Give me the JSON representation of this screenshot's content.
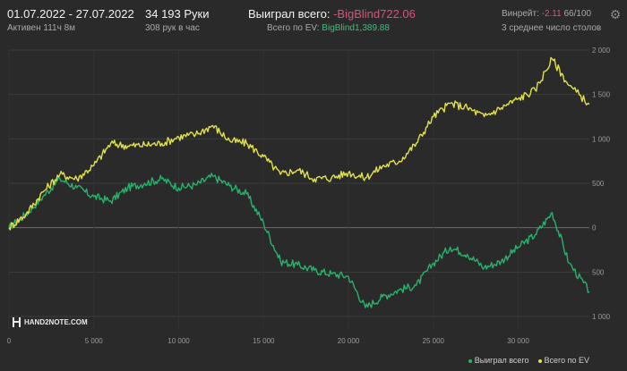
{
  "header": {
    "date_range": "01.07.2022 - 27.07.2022",
    "active_time": "Активен 111ч 8м",
    "hands_count": "34 193 Руки",
    "hands_per_hour": "308 рук в час",
    "won_total_label": "Выиграл всего:",
    "won_total_value": "-BigBlind722.06",
    "ev_total_label": "Всего по EV:",
    "ev_total_value": "BigBlind1,389.88",
    "winrate_label": "Винрейт:",
    "winrate_value": "-2.11",
    "winrate_unit": "66/100",
    "tables_avg": "3 среднее число столов"
  },
  "logo_text": "HAND2NOTE.COM",
  "icons": {
    "settings": "gear-icon"
  },
  "colors": {
    "won": "#27b36b",
    "ev": "#e3e14a",
    "negative": "#e0507a",
    "positive": "#3fbf7f"
  },
  "chart_data": {
    "type": "line",
    "xlabel": "",
    "ylabel": "",
    "xlim": [
      0,
      34193
    ],
    "ylim": [
      -1000,
      2000
    ],
    "x_ticks": [
      0,
      5000,
      10000,
      15000,
      20000,
      25000,
      30000
    ],
    "x_tick_labels": [
      "0",
      "5 000",
      "10 000",
      "15 000",
      "20 000",
      "25 000",
      "30 000"
    ],
    "y_ticks": [
      2000,
      1500,
      1000,
      500,
      0,
      -500,
      -1000
    ],
    "y_tick_labels": [
      "2 000",
      "1 500",
      "1 000",
      "500",
      "0",
      "500",
      "1 000"
    ],
    "legend_position": "bottom-right",
    "series": [
      {
        "name": "Выиграл всего",
        "color": "#27b36b",
        "x": [
          0,
          1000,
          2000,
          3000,
          4000,
          5000,
          6000,
          7000,
          8000,
          9000,
          10000,
          11000,
          12000,
          13000,
          14000,
          15000,
          16000,
          17000,
          18000,
          19000,
          20000,
          21000,
          22000,
          23000,
          24000,
          25000,
          26000,
          27000,
          28000,
          29000,
          30000,
          31000,
          32000,
          33000,
          34193
        ],
        "y": [
          0,
          150,
          350,
          550,
          450,
          350,
          300,
          450,
          500,
          550,
          450,
          480,
          580,
          470,
          380,
          50,
          -380,
          -420,
          -480,
          -520,
          -550,
          -900,
          -780,
          -700,
          -650,
          -400,
          -220,
          -300,
          -450,
          -380,
          -220,
          -80,
          170,
          -400,
          -720
        ]
      },
      {
        "name": "Всего по EV",
        "color": "#e3e14a",
        "x": [
          0,
          1000,
          2000,
          3000,
          4000,
          5000,
          6000,
          7000,
          8000,
          9000,
          10000,
          11000,
          12000,
          13000,
          14000,
          15000,
          16000,
          17000,
          18000,
          19000,
          20000,
          21000,
          22000,
          23000,
          24000,
          25000,
          26000,
          27000,
          28000,
          29000,
          30000,
          31000,
          32000,
          33000,
          34193
        ],
        "y": [
          0,
          150,
          400,
          600,
          550,
          700,
          950,
          920,
          930,
          950,
          1020,
          1050,
          1150,
          980,
          950,
          800,
          600,
          650,
          550,
          560,
          620,
          560,
          690,
          750,
          950,
          1250,
          1400,
          1350,
          1250,
          1350,
          1450,
          1550,
          1900,
          1600,
          1390
        ]
      }
    ]
  }
}
